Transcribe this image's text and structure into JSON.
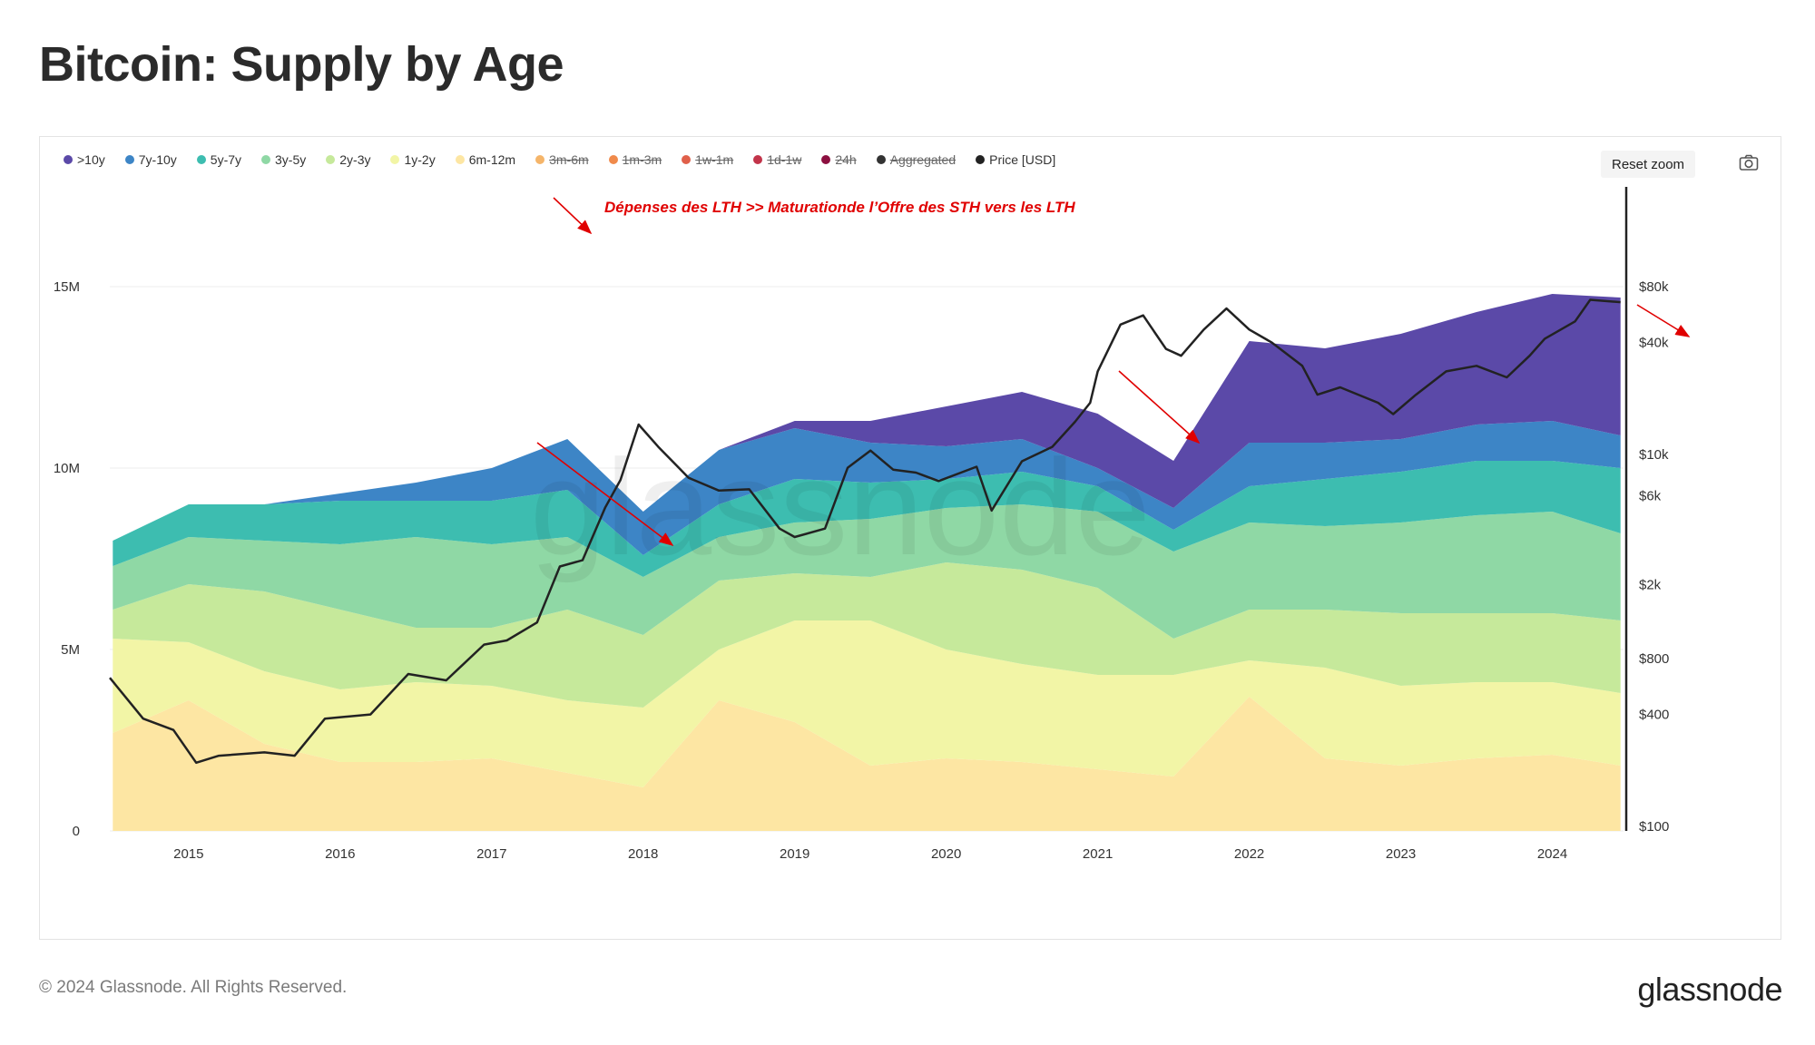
{
  "page": {
    "title": "Bitcoin: Supply by Age",
    "copyright": "© 2024 Glassnode. All Rights Reserved.",
    "brand": "glassnode"
  },
  "toolbar": {
    "reset_label": "Reset zoom",
    "camera_icon": "camera-icon"
  },
  "legend": [
    {
      "label": ">10y",
      "color": "#5b49a8",
      "active": true
    },
    {
      "label": "7y-10y",
      "color": "#3d85c6",
      "active": true
    },
    {
      "label": "5y-7y",
      "color": "#3dbdb0",
      "active": true
    },
    {
      "label": "3y-5y",
      "color": "#8fd8a5",
      "active": true
    },
    {
      "label": "2y-3y",
      "color": "#c6e99b",
      "active": true
    },
    {
      "label": "1y-2y",
      "color": "#f2f5a6",
      "active": true
    },
    {
      "label": "6m-12m",
      "color": "#fde6a3",
      "active": true
    },
    {
      "label": "3m-6m",
      "color": "#f5b56a",
      "active": false
    },
    {
      "label": "1m-3m",
      "color": "#f08a4b",
      "active": false
    },
    {
      "label": "1w-1m",
      "color": "#e0604a",
      "active": false
    },
    {
      "label": "1d-1w",
      "color": "#c2344a",
      "active": false
    },
    {
      "label": "24h",
      "color": "#8c1040",
      "active": false
    },
    {
      "label": "Aggregated",
      "color": "#333333",
      "active": false
    },
    {
      "label": "Price [USD]",
      "color": "#222222",
      "active": true
    }
  ],
  "annotation": {
    "text": "Dépenses des LTH >> Maturationde l’Offre des STH vers les LTH",
    "color": "#e00000"
  },
  "chart_data": {
    "type": "area",
    "stacked": true,
    "x_unit": "year",
    "x_ticks": [
      "2015",
      "2016",
      "2017",
      "2018",
      "2019",
      "2020",
      "2021",
      "2022",
      "2023",
      "2024"
    ],
    "xlim": [
      2014.48,
      2024.47
    ],
    "y_left": {
      "ticks": [
        "0",
        "5M",
        "10M",
        "15M"
      ],
      "ylim": [
        0,
        15000000
      ]
    },
    "y_right": {
      "scale": "log",
      "ticks": [
        "$100",
        "$400",
        "$800",
        "$2k",
        "$6k",
        "$10k",
        "$40k",
        "$80k"
      ],
      "ylim": [
        100,
        80000
      ]
    },
    "grid": true,
    "legend_position": "top-left",
    "x": [
      2014.5,
      2015.0,
      2015.5,
      2016.0,
      2016.5,
      2017.0,
      2017.5,
      2018.0,
      2018.5,
      2019.0,
      2019.5,
      2020.0,
      2020.5,
      2021.0,
      2021.5,
      2022.0,
      2022.5,
      2023.0,
      2023.5,
      2024.0,
      2024.45
    ],
    "series": [
      {
        "name": "6m-12m",
        "color": "#fde6a3",
        "values": [
          2700000.0,
          3600000.0,
          2400000.0,
          1900000.0,
          1900000.0,
          2000000.0,
          1600000.0,
          1200000.0,
          3600000.0,
          3000000.0,
          1800000.0,
          2000000.0,
          1900000.0,
          1700000.0,
          1500000.0,
          3700000.0,
          2000000.0,
          1800000.0,
          2000000.0,
          2100000.0,
          1800000.0
        ]
      },
      {
        "name": "1y-2y",
        "color": "#f2f5a6",
        "values": [
          2600000.0,
          1600000.0,
          2000000.0,
          2000000.0,
          2200000.0,
          2000000.0,
          2000000.0,
          2200000.0,
          1400000.0,
          2800000.0,
          4000000.0,
          3000000.0,
          2700000.0,
          2600000.0,
          2800000.0,
          1000000.0,
          2500000.0,
          2200000.0,
          2100000.0,
          2000000.0,
          2000000.0
        ]
      },
      {
        "name": "2y-3y",
        "color": "#c6e99b",
        "values": [
          800000.0,
          1600000.0,
          2200000.0,
          2200000.0,
          1500000.0,
          1600000.0,
          2500000.0,
          2000000.0,
          1900000.0,
          1300000.0,
          1200000.0,
          2400000.0,
          2600000.0,
          2400000.0,
          1000000.0,
          1400000.0,
          1600000.0,
          2000000.0,
          1900000.0,
          1900000.0,
          2000000.0
        ]
      },
      {
        "name": "3y-5y",
        "color": "#8fd8a5",
        "values": [
          1200000.0,
          1300000.0,
          1400000.0,
          1800000.0,
          2500000.0,
          2300000.0,
          2000000.0,
          1600000.0,
          1200000.0,
          1400000.0,
          1600000.0,
          1500000.0,
          1800000.0,
          2100000.0,
          2400000.0,
          2400000.0,
          2300000.0,
          2500000.0,
          2700000.0,
          2800000.0,
          2400000.0
        ]
      },
      {
        "name": "5y-7y",
        "color": "#3dbdb0",
        "values": [
          700000.0,
          900000.0,
          1000000.0,
          1200000.0,
          1000000.0,
          1200000.0,
          1300000.0,
          600000.0,
          900000.0,
          1200000.0,
          1000000.0,
          800000.0,
          900000.0,
          700000.0,
          600000.0,
          1000000.0,
          1300000.0,
          1400000.0,
          1500000.0,
          1400000.0,
          1800000.0
        ]
      },
      {
        "name": "7y-10y",
        "color": "#3d85c6",
        "values": [
          0,
          0,
          0,
          200000.0,
          500000.0,
          900000.0,
          1400000.0,
          1200000.0,
          1500000.0,
          1400000.0,
          1100000.0,
          900000.0,
          900000.0,
          500000.0,
          600000.0,
          1200000.0,
          1000000.0,
          900000.0,
          1000000.0,
          1100000.0,
          900000.0
        ]
      },
      {
        "name": ">10y",
        "color": "#5b49a8",
        "values": [
          0,
          0,
          0,
          0,
          0,
          0,
          0,
          0,
          0,
          200000.0,
          600000.0,
          1100000.0,
          1300000.0,
          1500000.0,
          1300000.0,
          2800000.0,
          2600000.0,
          2900000.0,
          3100000.0,
          3500000.0,
          3800000.0
        ]
      },
      {
        "name": "Price [USD]",
        "color": "#222222",
        "axis": "right",
        "x": [
          2014.48,
          2014.7,
          2014.9,
          2015.05,
          2015.2,
          2015.5,
          2015.7,
          2015.9,
          2016.2,
          2016.45,
          2016.7,
          2016.95,
          2017.1,
          2017.3,
          2017.45,
          2017.6,
          2017.75,
          2017.85,
          2017.97,
          2018.1,
          2018.3,
          2018.5,
          2018.7,
          2018.9,
          2019.0,
          2019.2,
          2019.35,
          2019.5,
          2019.65,
          2019.8,
          2019.95,
          2020.2,
          2020.3,
          2020.5,
          2020.7,
          2020.85,
          2020.95,
          2021.0,
          2021.15,
          2021.3,
          2021.45,
          2021.55,
          2021.7,
          2021.85,
          2022.0,
          2022.15,
          2022.35,
          2022.45,
          2022.6,
          2022.85,
          2022.95,
          2023.1,
          2023.3,
          2023.5,
          2023.7,
          2023.85,
          2023.95,
          2024.15,
          2024.25,
          2024.45
        ],
        "values": [
          630,
          380,
          330,
          220,
          240,
          250,
          240,
          380,
          400,
          660,
          610,
          950,
          1000,
          1250,
          2500,
          2700,
          5200,
          7300,
          14500,
          11000,
          7500,
          6400,
          6500,
          4000,
          3600,
          4000,
          8500,
          10500,
          8300,
          8000,
          7200,
          8600,
          5000,
          9200,
          11000,
          15000,
          19000,
          28000,
          50000,
          56000,
          37000,
          34000,
          47000,
          61000,
          47000,
          40000,
          30000,
          21000,
          23000,
          19000,
          16500,
          21000,
          28000,
          30000,
          26000,
          34000,
          42000,
          52000,
          68000,
          66000
        ]
      }
    ]
  }
}
